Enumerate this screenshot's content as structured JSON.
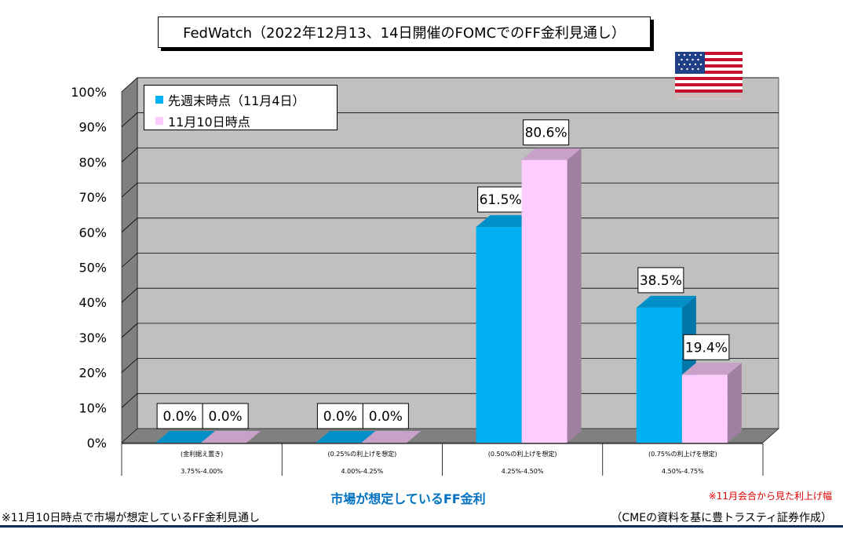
{
  "title": "FedWatch（2022年12月13、14日開催のFOMCでのFF金利見通し）",
  "chart_data": {
    "type": "bar",
    "categories": [
      {
        "label": "(金利据え置き)",
        "range": "3.75%-4.00%"
      },
      {
        "label": "(0.25%の利上げを想定)",
        "range": "4.00%-4.25%"
      },
      {
        "label": "(0.50%の利上げを想定)",
        "range": "4.25%-4.50%"
      },
      {
        "label": "(0.75%の利上げを想定)",
        "range": "4.50%-4.75%"
      }
    ],
    "series": [
      {
        "name": "先週末時点（11月4日）",
        "values": [
          0.0,
          0.0,
          61.5,
          38.5
        ],
        "labels": [
          "0.0%",
          "0.0%",
          "61.5%",
          "38.5%"
        ]
      },
      {
        "name": "11月10日時点",
        "values": [
          0.0,
          0.0,
          80.6,
          19.4
        ],
        "labels": [
          "0.0%",
          "0.0%",
          "80.6%",
          "19.4%"
        ]
      }
    ],
    "xlabel": "市場が想定しているFF金利",
    "ylim": [
      0,
      100
    ],
    "yticks": [
      "0%",
      "10%",
      "20%",
      "30%",
      "40%",
      "50%",
      "60%",
      "70%",
      "80%",
      "90%",
      "100%"
    ],
    "legend_position": "top-left",
    "grid": true
  },
  "colors": {
    "series1_front": "#00b0f0",
    "series1_side": "#0077a8",
    "series1_top": "#0090c8",
    "series2_front": "#ffccff",
    "series2_side": "#a080a0",
    "series2_top": "#c8a0c8",
    "plot_back": "#c0c0c0",
    "plot_side": "#808080"
  },
  "notes": {
    "red_note": "※11月会合から見た利上げ幅",
    "left_note": "※11月10日時点で市場が想定しているFF金利見通し",
    "right_note": "（CMEの資料を基に豊トラスティ証券作成）"
  },
  "flag_icon": "us-flag-icon"
}
